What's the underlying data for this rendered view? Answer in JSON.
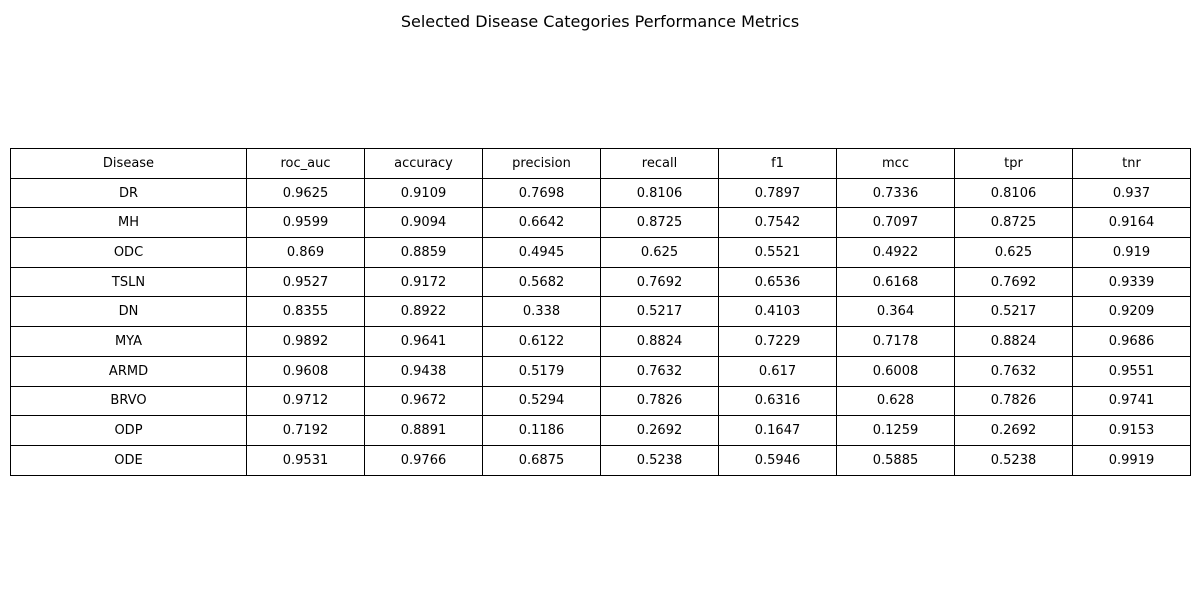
{
  "chart_data": {
    "type": "table",
    "title": "Selected Disease Categories Performance Metrics",
    "columns": [
      "Disease",
      "roc_auc",
      "accuracy",
      "precision",
      "recall",
      "f1",
      "mcc",
      "tpr",
      "tnr"
    ],
    "rows": [
      [
        "DR",
        "0.9625",
        "0.9109",
        "0.7698",
        "0.8106",
        "0.7897",
        "0.7336",
        "0.8106",
        "0.937"
      ],
      [
        "MH",
        "0.9599",
        "0.9094",
        "0.6642",
        "0.8725",
        "0.7542",
        "0.7097",
        "0.8725",
        "0.9164"
      ],
      [
        "ODC",
        "0.869",
        "0.8859",
        "0.4945",
        "0.625",
        "0.5521",
        "0.4922",
        "0.625",
        "0.919"
      ],
      [
        "TSLN",
        "0.9527",
        "0.9172",
        "0.5682",
        "0.7692",
        "0.6536",
        "0.6168",
        "0.7692",
        "0.9339"
      ],
      [
        "DN",
        "0.8355",
        "0.8922",
        "0.338",
        "0.5217",
        "0.4103",
        "0.364",
        "0.5217",
        "0.9209"
      ],
      [
        "MYA",
        "0.9892",
        "0.9641",
        "0.6122",
        "0.8824",
        "0.7229",
        "0.7178",
        "0.8824",
        "0.9686"
      ],
      [
        "ARMD",
        "0.9608",
        "0.9438",
        "0.5179",
        "0.7632",
        "0.617",
        "0.6008",
        "0.7632",
        "0.9551"
      ],
      [
        "BRVO",
        "0.9712",
        "0.9672",
        "0.5294",
        "0.7826",
        "0.6316",
        "0.628",
        "0.7826",
        "0.9741"
      ],
      [
        "ODP",
        "0.7192",
        "0.8891",
        "0.1186",
        "0.2692",
        "0.1647",
        "0.1259",
        "0.2692",
        "0.9153"
      ],
      [
        "ODE",
        "0.9531",
        "0.9766",
        "0.6875",
        "0.5238",
        "0.5946",
        "0.5885",
        "0.5238",
        "0.9919"
      ]
    ]
  }
}
